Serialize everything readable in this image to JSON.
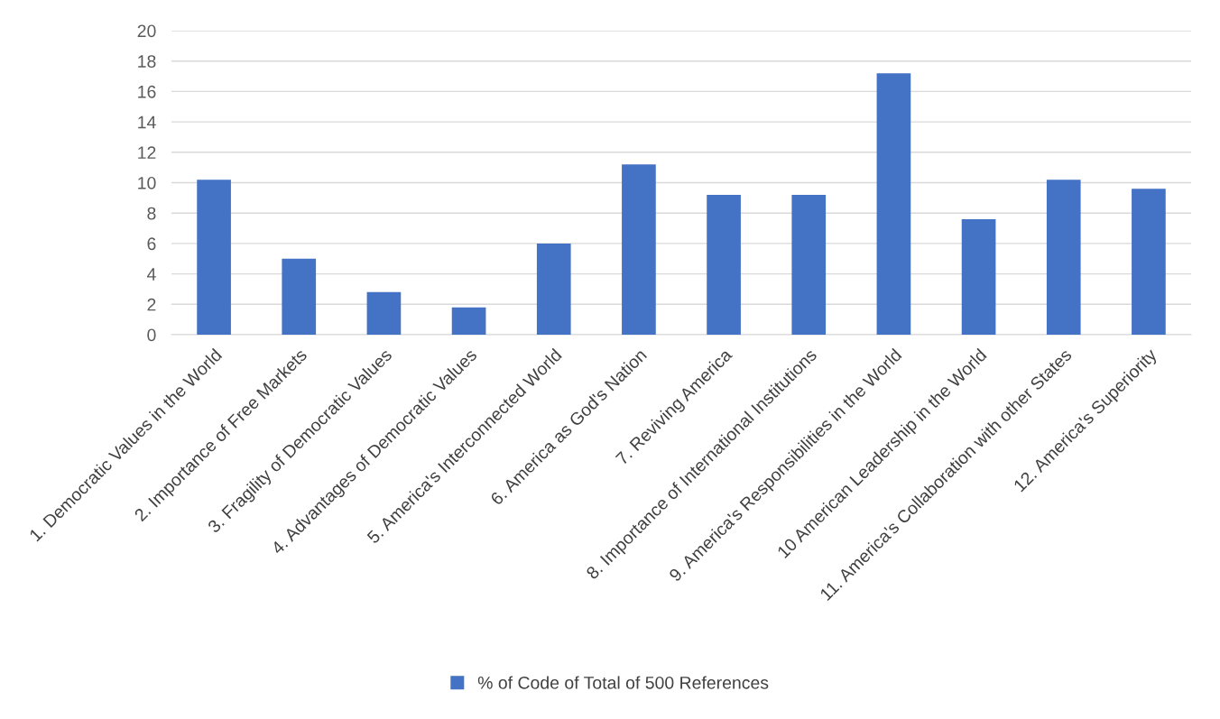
{
  "chart_data": {
    "type": "bar",
    "categories": [
      "1. Democratic Values in the World",
      "2. Importance of Free Markets",
      "3. Fragility of Democratic Values",
      "4. Advantages of Democratic Values",
      "5. America's Interconnected World",
      "6. America as God's Nation",
      "7. Reviving America",
      "8. Importance of International Institutions",
      "9. America's Responsibilities in the World",
      "10 American Leadership in the World",
      "11. America's Collaboration with other States",
      "12. America's Superiority"
    ],
    "series": [
      {
        "name": "% of Code of Total of 500 References",
        "color": "#4472c4",
        "values": [
          10.2,
          5.0,
          2.8,
          1.8,
          6.0,
          11.2,
          9.2,
          9.2,
          17.2,
          7.6,
          10.2,
          9.6
        ]
      }
    ],
    "ylim": [
      0,
      20
    ],
    "yticks": [
      0,
      2,
      4,
      6,
      8,
      10,
      12,
      14,
      16,
      18,
      20
    ],
    "grid": "y",
    "legend": "bottom"
  }
}
